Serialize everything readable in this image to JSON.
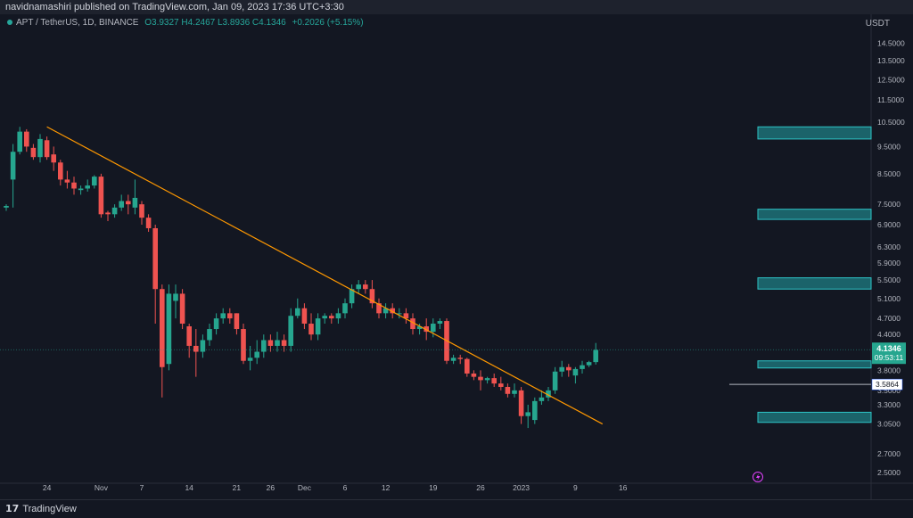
{
  "header": {
    "publish_line": "navidnamashiri published on TradingView.com, Jan 09, 2023 17:36 UTC+3:30"
  },
  "legend": {
    "symbol": "APT / TetherUS, 1D, BINANCE",
    "ohlc": "O3.9327 H4.2467 L3.8936 C4.1346",
    "change": "+0.2026 (+5.15%)"
  },
  "axis": {
    "currency": "USDT",
    "price_ticks": [
      "14.5000",
      "13.5000",
      "12.5000",
      "11.5000",
      "10.5000",
      "9.5000",
      "8.5000",
      "7.5000",
      "6.9000",
      "6.3000",
      "5.9000",
      "5.5000",
      "5.1000",
      "4.7000",
      "4.4000",
      "4.1000",
      "3.8000",
      "3.5000",
      "3.3000",
      "3.0500",
      "2.7000",
      "2.5000"
    ],
    "date_ticks": [
      "24",
      "Nov",
      "7",
      "14",
      "21",
      "26",
      "Dec",
      "6",
      "12",
      "19",
      "26",
      "2023",
      "9",
      "16"
    ],
    "current_price": "4.1346",
    "countdown": "09:53:11",
    "level_label": "3.5864"
  },
  "footer": {
    "brand": "TradingView",
    "logo": "17"
  },
  "colors": {
    "background": "#131722",
    "up": "#26a69a",
    "up_candle": "#26a68f",
    "down": "#ef5350",
    "trendline": "#ff9800",
    "zone": "#22a3a6"
  },
  "chart_data": {
    "type": "candlestick",
    "symbol": "APT / TetherUS",
    "interval": "1D",
    "exchange": "BINANCE",
    "scale": "log",
    "candles": [
      {
        "o": 7.4,
        "h": 7.5,
        "l": 7.3,
        "c": 7.45
      },
      {
        "o": 8.3,
        "h": 9.6,
        "l": 7.4,
        "c": 9.3
      },
      {
        "o": 9.3,
        "h": 10.3,
        "l": 9.2,
        "c": 10.1
      },
      {
        "o": 10.1,
        "h": 10.2,
        "l": 9.3,
        "c": 9.5
      },
      {
        "o": 9.45,
        "h": 9.6,
        "l": 9.0,
        "c": 9.1
      },
      {
        "o": 9.1,
        "h": 10.0,
        "l": 8.9,
        "c": 9.8
      },
      {
        "o": 9.75,
        "h": 9.9,
        "l": 9.0,
        "c": 9.1
      },
      {
        "o": 9.2,
        "h": 9.5,
        "l": 8.6,
        "c": 8.9
      },
      {
        "o": 8.9,
        "h": 9.0,
        "l": 8.1,
        "c": 8.3
      },
      {
        "o": 8.3,
        "h": 8.6,
        "l": 8.0,
        "c": 8.2
      },
      {
        "o": 8.2,
        "h": 8.4,
        "l": 7.8,
        "c": 8.0
      },
      {
        "o": 7.95,
        "h": 8.1,
        "l": 7.8,
        "c": 8.0
      },
      {
        "o": 8.0,
        "h": 8.3,
        "l": 7.9,
        "c": 8.1
      },
      {
        "o": 8.1,
        "h": 8.45,
        "l": 8.0,
        "c": 8.4
      },
      {
        "o": 8.4,
        "h": 8.5,
        "l": 7.1,
        "c": 7.2
      },
      {
        "o": 7.25,
        "h": 7.3,
        "l": 7.0,
        "c": 7.2
      },
      {
        "o": 7.2,
        "h": 7.5,
        "l": 7.1,
        "c": 7.4
      },
      {
        "o": 7.4,
        "h": 7.8,
        "l": 7.3,
        "c": 7.6
      },
      {
        "o": 7.6,
        "h": 7.8,
        "l": 7.2,
        "c": 7.5
      },
      {
        "o": 7.4,
        "h": 8.3,
        "l": 7.2,
        "c": 7.7
      },
      {
        "o": 7.5,
        "h": 7.6,
        "l": 6.9,
        "c": 7.1
      },
      {
        "o": 7.1,
        "h": 7.2,
        "l": 6.7,
        "c": 6.8
      },
      {
        "o": 6.8,
        "h": 6.9,
        "l": 4.6,
        "c": 5.3
      },
      {
        "o": 5.3,
        "h": 5.4,
        "l": 3.4,
        "c": 3.85
      },
      {
        "o": 3.9,
        "h": 5.4,
        "l": 3.8,
        "c": 5.2
      },
      {
        "o": 5.05,
        "h": 5.4,
        "l": 4.7,
        "c": 5.2
      },
      {
        "o": 5.2,
        "h": 5.3,
        "l": 4.5,
        "c": 4.6
      },
      {
        "o": 4.55,
        "h": 4.6,
        "l": 4.0,
        "c": 4.2
      },
      {
        "o": 4.2,
        "h": 4.5,
        "l": 3.7,
        "c": 4.1
      },
      {
        "o": 4.1,
        "h": 4.4,
        "l": 4.0,
        "c": 4.3
      },
      {
        "o": 4.3,
        "h": 4.6,
        "l": 4.2,
        "c": 4.5
      },
      {
        "o": 4.5,
        "h": 4.8,
        "l": 4.4,
        "c": 4.7
      },
      {
        "o": 4.7,
        "h": 4.9,
        "l": 4.6,
        "c": 4.8
      },
      {
        "o": 4.8,
        "h": 4.9,
        "l": 4.6,
        "c": 4.7
      },
      {
        "o": 4.8,
        "h": 4.8,
        "l": 4.4,
        "c": 4.5
      },
      {
        "o": 4.5,
        "h": 4.6,
        "l": 3.9,
        "c": 3.95
      },
      {
        "o": 3.95,
        "h": 4.2,
        "l": 3.8,
        "c": 4.0
      },
      {
        "o": 4.0,
        "h": 4.3,
        "l": 3.9,
        "c": 4.1
      },
      {
        "o": 4.1,
        "h": 4.4,
        "l": 4.0,
        "c": 4.3
      },
      {
        "o": 4.3,
        "h": 4.4,
        "l": 4.1,
        "c": 4.2
      },
      {
        "o": 4.2,
        "h": 4.45,
        "l": 4.1,
        "c": 4.3
      },
      {
        "o": 4.3,
        "h": 4.4,
        "l": 4.1,
        "c": 4.2
      },
      {
        "o": 4.2,
        "h": 4.9,
        "l": 4.1,
        "c": 4.75
      },
      {
        "o": 4.75,
        "h": 5.1,
        "l": 4.7,
        "c": 4.9
      },
      {
        "o": 4.9,
        "h": 5.0,
        "l": 4.5,
        "c": 4.6
      },
      {
        "o": 4.6,
        "h": 4.8,
        "l": 4.3,
        "c": 4.4
      },
      {
        "o": 4.4,
        "h": 4.8,
        "l": 4.3,
        "c": 4.7
      },
      {
        "o": 4.7,
        "h": 4.8,
        "l": 4.6,
        "c": 4.75
      },
      {
        "o": 4.75,
        "h": 4.8,
        "l": 4.6,
        "c": 4.7
      },
      {
        "o": 4.7,
        "h": 4.9,
        "l": 4.6,
        "c": 4.8
      },
      {
        "o": 4.8,
        "h": 5.1,
        "l": 4.7,
        "c": 5.0
      },
      {
        "o": 5.0,
        "h": 5.4,
        "l": 4.9,
        "c": 5.3
      },
      {
        "o": 5.3,
        "h": 5.5,
        "l": 5.2,
        "c": 5.4
      },
      {
        "o": 5.4,
        "h": 5.5,
        "l": 5.2,
        "c": 5.3
      },
      {
        "o": 5.3,
        "h": 5.5,
        "l": 4.9,
        "c": 5.0
      },
      {
        "o": 5.0,
        "h": 5.1,
        "l": 4.7,
        "c": 4.8
      },
      {
        "o": 4.8,
        "h": 5.0,
        "l": 4.7,
        "c": 4.9
      },
      {
        "o": 4.9,
        "h": 5.0,
        "l": 4.7,
        "c": 4.8
      },
      {
        "o": 4.8,
        "h": 4.9,
        "l": 4.7,
        "c": 4.8
      },
      {
        "o": 4.8,
        "h": 4.9,
        "l": 4.6,
        "c": 4.7
      },
      {
        "o": 4.7,
        "h": 4.8,
        "l": 4.4,
        "c": 4.5
      },
      {
        "o": 4.5,
        "h": 4.6,
        "l": 4.4,
        "c": 4.55
      },
      {
        "o": 4.55,
        "h": 4.7,
        "l": 4.3,
        "c": 4.45
      },
      {
        "o": 4.45,
        "h": 4.7,
        "l": 4.35,
        "c": 4.6
      },
      {
        "o": 4.6,
        "h": 4.7,
        "l": 4.5,
        "c": 4.65
      },
      {
        "o": 4.65,
        "h": 4.7,
        "l": 3.9,
        "c": 3.95
      },
      {
        "o": 3.95,
        "h": 4.05,
        "l": 3.9,
        "c": 4.0
      },
      {
        "o": 4.0,
        "h": 4.05,
        "l": 3.9,
        "c": 3.98
      },
      {
        "o": 3.98,
        "h": 4.0,
        "l": 3.7,
        "c": 3.75
      },
      {
        "o": 3.75,
        "h": 3.8,
        "l": 3.65,
        "c": 3.7
      },
      {
        "o": 3.7,
        "h": 3.8,
        "l": 3.5,
        "c": 3.65
      },
      {
        "o": 3.65,
        "h": 3.7,
        "l": 3.6,
        "c": 3.68
      },
      {
        "o": 3.68,
        "h": 3.75,
        "l": 3.55,
        "c": 3.6
      },
      {
        "o": 3.6,
        "h": 3.7,
        "l": 3.5,
        "c": 3.55
      },
      {
        "o": 3.55,
        "h": 3.6,
        "l": 3.4,
        "c": 3.45
      },
      {
        "o": 3.45,
        "h": 3.6,
        "l": 3.4,
        "c": 3.5
      },
      {
        "o": 3.5,
        "h": 3.55,
        "l": 3.05,
        "c": 3.15
      },
      {
        "o": 3.15,
        "h": 3.3,
        "l": 3.0,
        "c": 3.2
      },
      {
        "o": 3.1,
        "h": 3.4,
        "l": 3.05,
        "c": 3.35
      },
      {
        "o": 3.35,
        "h": 3.5,
        "l": 3.3,
        "c": 3.4
      },
      {
        "o": 3.4,
        "h": 3.55,
        "l": 3.35,
        "c": 3.5
      },
      {
        "o": 3.5,
        "h": 3.85,
        "l": 3.45,
        "c": 3.78
      },
      {
        "o": 3.78,
        "h": 3.95,
        "l": 3.7,
        "c": 3.85
      },
      {
        "o": 3.85,
        "h": 3.9,
        "l": 3.7,
        "c": 3.8
      },
      {
        "o": 3.72,
        "h": 3.85,
        "l": 3.6,
        "c": 3.82
      },
      {
        "o": 3.82,
        "h": 3.95,
        "l": 3.75,
        "c": 3.88
      },
      {
        "o": 3.88,
        "h": 3.95,
        "l": 3.85,
        "c": 3.93
      },
      {
        "o": 3.93,
        "h": 4.25,
        "l": 3.89,
        "c": 4.13
      }
    ],
    "trendline": [
      {
        "date": "Oct 24",
        "price": 10.3
      },
      {
        "date": "Jan 14",
        "price": 3.05
      }
    ],
    "horizontal_level": 3.5864,
    "zones": [
      {
        "low": 9.8,
        "high": 10.3
      },
      {
        "low": 7.05,
        "high": 7.35
      },
      {
        "low": 5.3,
        "high": 5.55
      },
      {
        "low": 3.85,
        "high": 3.95
      },
      {
        "low": 3.07,
        "high": 3.2
      }
    ],
    "xlim": [
      "Oct 18",
      "Jan 20"
    ],
    "ylim": [
      2.35,
      17.5
    ]
  }
}
